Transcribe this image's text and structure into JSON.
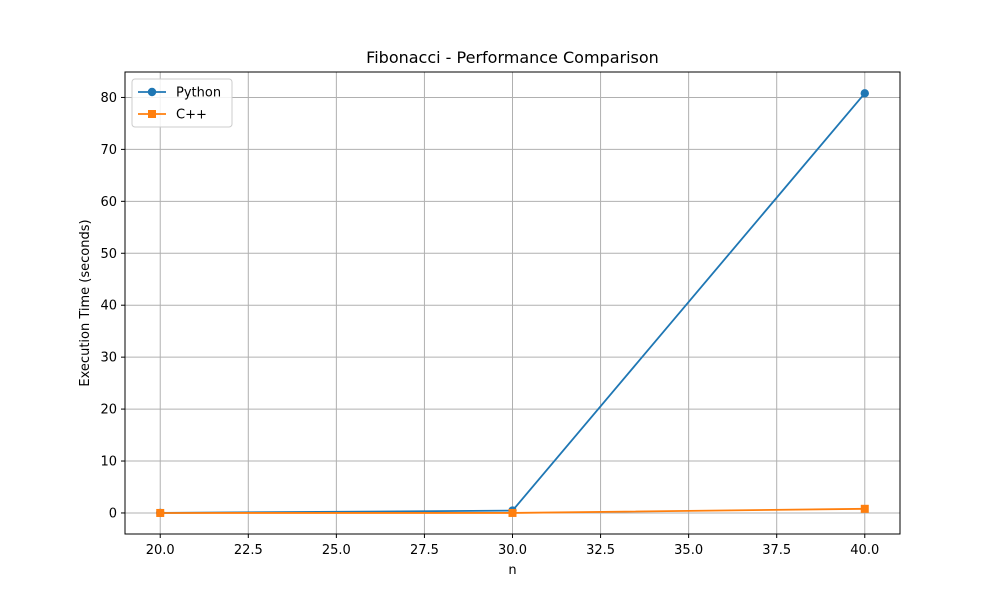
{
  "chart_data": {
    "type": "line",
    "title": "Fibonacci - Performance Comparison",
    "xlabel": "n",
    "ylabel": "Execution Time (seconds)",
    "xlim": [
      19.0,
      41.0
    ],
    "ylim": [
      -4.05,
      84.9
    ],
    "xticks": [
      20.0,
      22.5,
      25.0,
      27.5,
      30.0,
      32.5,
      35.0,
      37.5,
      40.0
    ],
    "xtick_labels": [
      "20.0",
      "22.5",
      "25.0",
      "27.5",
      "30.0",
      "32.5",
      "35.0",
      "37.5",
      "40.0"
    ],
    "yticks": [
      0,
      10,
      20,
      30,
      40,
      50,
      60,
      70,
      80
    ],
    "ytick_labels": [
      "0",
      "10",
      "20",
      "30",
      "40",
      "50",
      "60",
      "70",
      "80"
    ],
    "grid": true,
    "legend_position": "top-left",
    "x": [
      20,
      30,
      40
    ],
    "series": [
      {
        "name": "Python",
        "values": [
          0.01,
          0.45,
          80.8
        ],
        "color": "#1f77b4",
        "marker": "circle"
      },
      {
        "name": "C++",
        "values": [
          0.0,
          0.003,
          0.8
        ],
        "color": "#ff7f0e",
        "marker": "square"
      }
    ]
  }
}
